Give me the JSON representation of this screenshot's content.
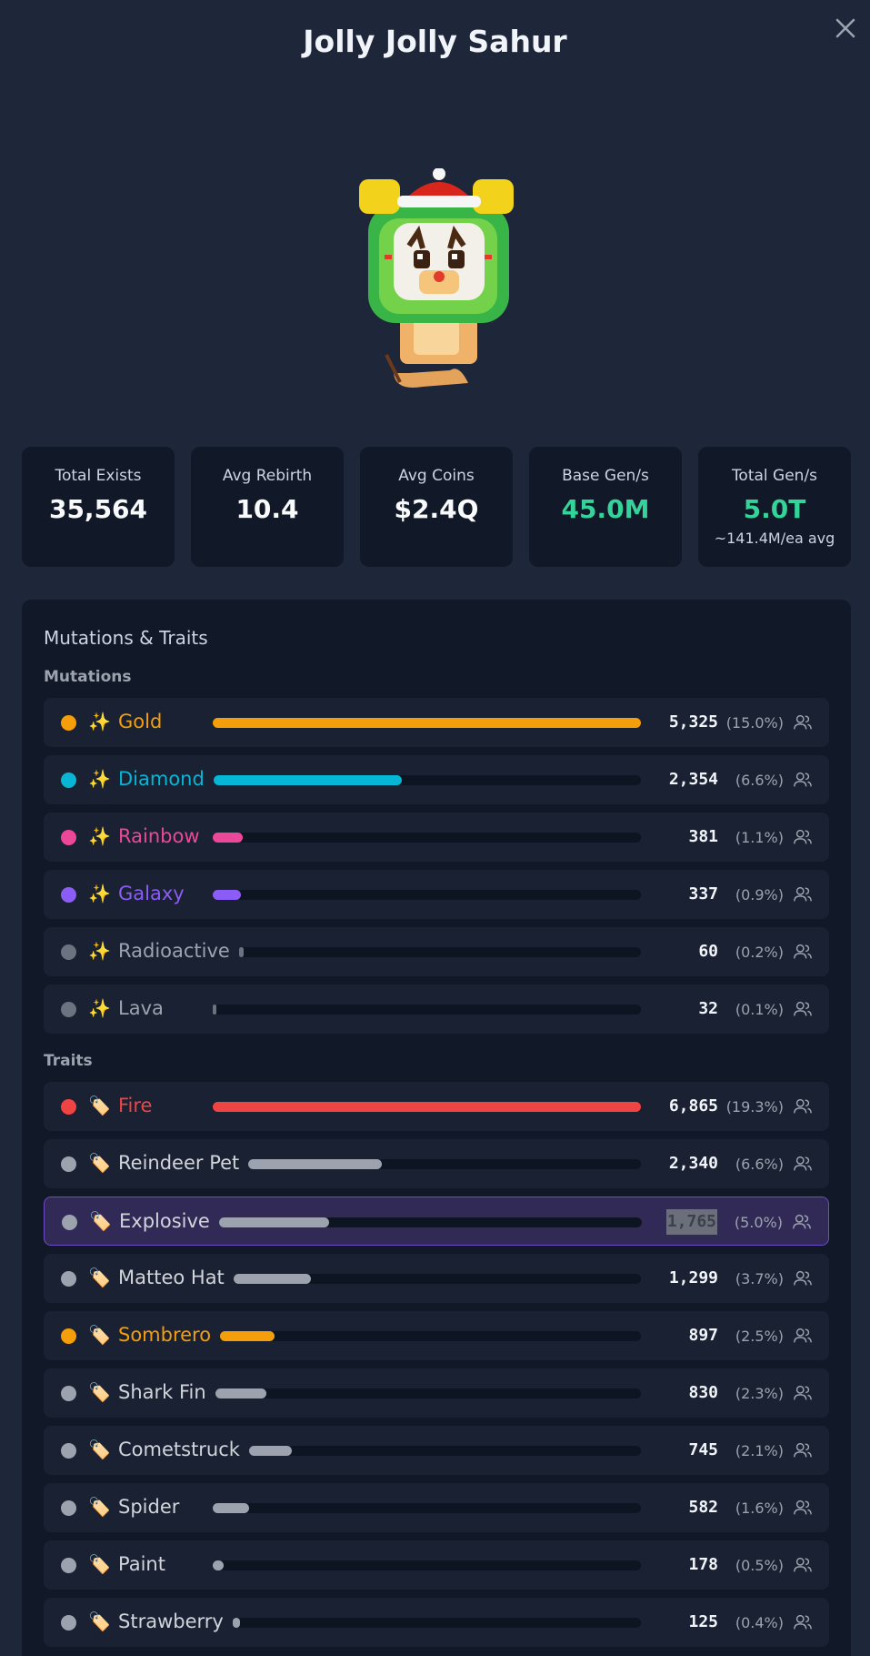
{
  "title": "Jolly Jolly Sahur",
  "stats": [
    {
      "label": "Total Exists",
      "value": "35,564",
      "sub": ""
    },
    {
      "label": "Avg Rebirth",
      "value": "10.4",
      "sub": ""
    },
    {
      "label": "Avg Coins",
      "value": "$2.4Q",
      "sub": ""
    },
    {
      "label": "Base Gen/s",
      "value": "45.0M",
      "sub": ""
    },
    {
      "label": "Total Gen/s",
      "value": "5.0T",
      "sub": "~141.4M/ea avg"
    }
  ],
  "panel_title": "Mutations & Traits",
  "mutations_title": "Mutations",
  "traits_title": "Traits",
  "mutations": [
    {
      "name": "Gold",
      "emoji": "✨",
      "count": "5,325",
      "pct": "(15.0%)",
      "fraction": 1.0,
      "color": "#f59e0b",
      "name_color": "#f59e0b"
    },
    {
      "name": "Diamond",
      "emoji": "✨",
      "count": "2,354",
      "pct": "(6.6%)",
      "fraction": 0.44,
      "color": "#06b6d4",
      "name_color": "#06b6d4"
    },
    {
      "name": "Rainbow",
      "emoji": "✨",
      "count": "381",
      "pct": "(1.1%)",
      "fraction": 0.07,
      "color": "#ec4899",
      "name_color": "#ec4899"
    },
    {
      "name": "Galaxy",
      "emoji": "✨",
      "count": "337",
      "pct": "(0.9%)",
      "fraction": 0.065,
      "color": "#8b5cf6",
      "name_color": "#8b5cf6"
    },
    {
      "name": "Radioactive",
      "emoji": "✨",
      "count": "60",
      "pct": "(0.2%)",
      "fraction": 0.012,
      "color": "#6b7280",
      "name_color": "#9ca3af"
    },
    {
      "name": "Lava",
      "emoji": "✨",
      "count": "32",
      "pct": "(0.1%)",
      "fraction": 0.006,
      "color": "#6b7280",
      "name_color": "#9ca3af"
    }
  ],
  "traits": [
    {
      "name": "Fire",
      "emoji": "🏷️",
      "count": "6,865",
      "pct": "(19.3%)",
      "fraction": 1.0,
      "color": "#ef4444",
      "name_color": "#ef4444"
    },
    {
      "name": "Reindeer Pet",
      "emoji": "🏷️",
      "count": "2,340",
      "pct": "(6.6%)",
      "fraction": 0.34,
      "color": "#9ca3af",
      "name_color": "#d1d5db"
    },
    {
      "name": "Explosive",
      "emoji": "🏷️",
      "count": "1,765",
      "pct": "(5.0%)",
      "fraction": 0.26,
      "color": "#9ca3af",
      "name_color": "#d1d5db",
      "highlight": true
    },
    {
      "name": "Matteo Hat",
      "emoji": "🏷️",
      "count": "1,299",
      "pct": "(3.7%)",
      "fraction": 0.19,
      "color": "#9ca3af",
      "name_color": "#d1d5db"
    },
    {
      "name": "Sombrero",
      "emoji": "🏷️",
      "count": "897",
      "pct": "(2.5%)",
      "fraction": 0.13,
      "color": "#f59e0b",
      "name_color": "#f59e0b"
    },
    {
      "name": "Shark Fin",
      "emoji": "🏷️",
      "count": "830",
      "pct": "(2.3%)",
      "fraction": 0.12,
      "color": "#9ca3af",
      "name_color": "#d1d5db"
    },
    {
      "name": "Cometstruck",
      "emoji": "🏷️",
      "count": "745",
      "pct": "(2.1%)",
      "fraction": 0.11,
      "color": "#9ca3af",
      "name_color": "#d1d5db"
    },
    {
      "name": "Spider",
      "emoji": "🏷️",
      "count": "582",
      "pct": "(1.6%)",
      "fraction": 0.085,
      "color": "#9ca3af",
      "name_color": "#d1d5db"
    },
    {
      "name": "Paint",
      "emoji": "🏷️",
      "count": "178",
      "pct": "(0.5%)",
      "fraction": 0.026,
      "color": "#9ca3af",
      "name_color": "#d1d5db"
    },
    {
      "name": "Strawberry",
      "emoji": "🏷️",
      "count": "125",
      "pct": "(0.4%)",
      "fraction": 0.018,
      "color": "#9ca3af",
      "name_color": "#d1d5db"
    }
  ]
}
